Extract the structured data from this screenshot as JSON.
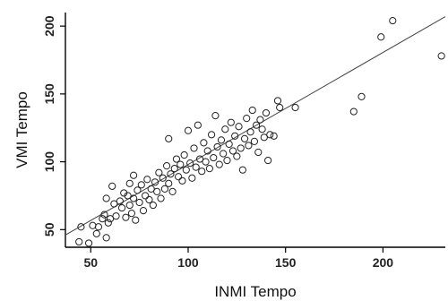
{
  "chart_data": {
    "type": "scatter",
    "title": "",
    "xlabel": "INMI Tempo",
    "ylabel": "VMI Tempo",
    "xlim": [
      37,
      232
    ],
    "ylim": [
      37,
      210
    ],
    "xticks": [
      50,
      100,
      150,
      200
    ],
    "yticks": [
      50,
      100,
      150,
      200
    ],
    "xtick_labels": [
      "50",
      "100",
      "150",
      "200"
    ],
    "ytick_labels": [
      "50",
      "100",
      "150",
      "200"
    ],
    "grid": false,
    "legend": "none",
    "marker": "open-circle",
    "colors": {
      "points": "#222222",
      "fit_line": "#444444",
      "axes": "#000000"
    },
    "fit_line": {
      "x": [
        37,
        232
      ],
      "y": [
        46,
        207
      ]
    },
    "points": [
      {
        "x": 44,
        "y": 41
      },
      {
        "x": 45,
        "y": 52
      },
      {
        "x": 49,
        "y": 40
      },
      {
        "x": 51,
        "y": 53
      },
      {
        "x": 53,
        "y": 47
      },
      {
        "x": 54,
        "y": 52
      },
      {
        "x": 56,
        "y": 58
      },
      {
        "x": 57,
        "y": 61
      },
      {
        "x": 58,
        "y": 44
      },
      {
        "x": 58,
        "y": 73
      },
      {
        "x": 59,
        "y": 55
      },
      {
        "x": 60,
        "y": 58
      },
      {
        "x": 61,
        "y": 82
      },
      {
        "x": 62,
        "y": 69
      },
      {
        "x": 63,
        "y": 60
      },
      {
        "x": 65,
        "y": 71
      },
      {
        "x": 66,
        "y": 66
      },
      {
        "x": 67,
        "y": 77
      },
      {
        "x": 68,
        "y": 59
      },
      {
        "x": 69,
        "y": 75
      },
      {
        "x": 70,
        "y": 68
      },
      {
        "x": 70,
        "y": 84
      },
      {
        "x": 71,
        "y": 62
      },
      {
        "x": 72,
        "y": 73
      },
      {
        "x": 72,
        "y": 90
      },
      {
        "x": 73,
        "y": 57
      },
      {
        "x": 74,
        "y": 79
      },
      {
        "x": 75,
        "y": 70
      },
      {
        "x": 76,
        "y": 83
      },
      {
        "x": 77,
        "y": 64
      },
      {
        "x": 78,
        "y": 75
      },
      {
        "x": 79,
        "y": 87
      },
      {
        "x": 80,
        "y": 72
      },
      {
        "x": 81,
        "y": 80
      },
      {
        "x": 82,
        "y": 68
      },
      {
        "x": 83,
        "y": 85
      },
      {
        "x": 84,
        "y": 78
      },
      {
        "x": 85,
        "y": 92
      },
      {
        "x": 86,
        "y": 73
      },
      {
        "x": 87,
        "y": 88
      },
      {
        "x": 88,
        "y": 80
      },
      {
        "x": 89,
        "y": 97
      },
      {
        "x": 90,
        "y": 84
      },
      {
        "x": 90,
        "y": 117
      },
      {
        "x": 91,
        "y": 91
      },
      {
        "x": 92,
        "y": 78
      },
      {
        "x": 93,
        "y": 95
      },
      {
        "x": 94,
        "y": 102
      },
      {
        "x": 95,
        "y": 89
      },
      {
        "x": 96,
        "y": 98
      },
      {
        "x": 97,
        "y": 86
      },
      {
        "x": 98,
        "y": 105
      },
      {
        "x": 99,
        "y": 94
      },
      {
        "x": 100,
        "y": 123
      },
      {
        "x": 101,
        "y": 99
      },
      {
        "x": 102,
        "y": 88
      },
      {
        "x": 103,
        "y": 110
      },
      {
        "x": 104,
        "y": 96
      },
      {
        "x": 105,
        "y": 127
      },
      {
        "x": 106,
        "y": 102
      },
      {
        "x": 107,
        "y": 93
      },
      {
        "x": 108,
        "y": 114
      },
      {
        "x": 109,
        "y": 100
      },
      {
        "x": 110,
        "y": 108
      },
      {
        "x": 111,
        "y": 95
      },
      {
        "x": 112,
        "y": 120
      },
      {
        "x": 113,
        "y": 103
      },
      {
        "x": 114,
        "y": 134
      },
      {
        "x": 115,
        "y": 111
      },
      {
        "x": 116,
        "y": 98
      },
      {
        "x": 117,
        "y": 116
      },
      {
        "x": 118,
        "y": 106
      },
      {
        "x": 119,
        "y": 124
      },
      {
        "x": 120,
        "y": 101
      },
      {
        "x": 121,
        "y": 113
      },
      {
        "x": 122,
        "y": 129
      },
      {
        "x": 123,
        "y": 108
      },
      {
        "x": 124,
        "y": 119
      },
      {
        "x": 125,
        "y": 104
      },
      {
        "x": 126,
        "y": 126
      },
      {
        "x": 127,
        "y": 110
      },
      {
        "x": 128,
        "y": 94
      },
      {
        "x": 129,
        "y": 117
      },
      {
        "x": 130,
        "y": 132
      },
      {
        "x": 131,
        "y": 112
      },
      {
        "x": 132,
        "y": 122
      },
      {
        "x": 133,
        "y": 138
      },
      {
        "x": 134,
        "y": 115
      },
      {
        "x": 135,
        "y": 127
      },
      {
        "x": 136,
        "y": 107
      },
      {
        "x": 137,
        "y": 131
      },
      {
        "x": 138,
        "y": 124
      },
      {
        "x": 139,
        "y": 118
      },
      {
        "x": 140,
        "y": 136
      },
      {
        "x": 141,
        "y": 101
      },
      {
        "x": 142,
        "y": 120
      },
      {
        "x": 144,
        "y": 119
      },
      {
        "x": 146,
        "y": 145
      },
      {
        "x": 147,
        "y": 140
      },
      {
        "x": 155,
        "y": 140
      },
      {
        "x": 185,
        "y": 137
      },
      {
        "x": 189,
        "y": 148
      },
      {
        "x": 199,
        "y": 192
      },
      {
        "x": 205,
        "y": 204
      },
      {
        "x": 230,
        "y": 178
      }
    ]
  }
}
